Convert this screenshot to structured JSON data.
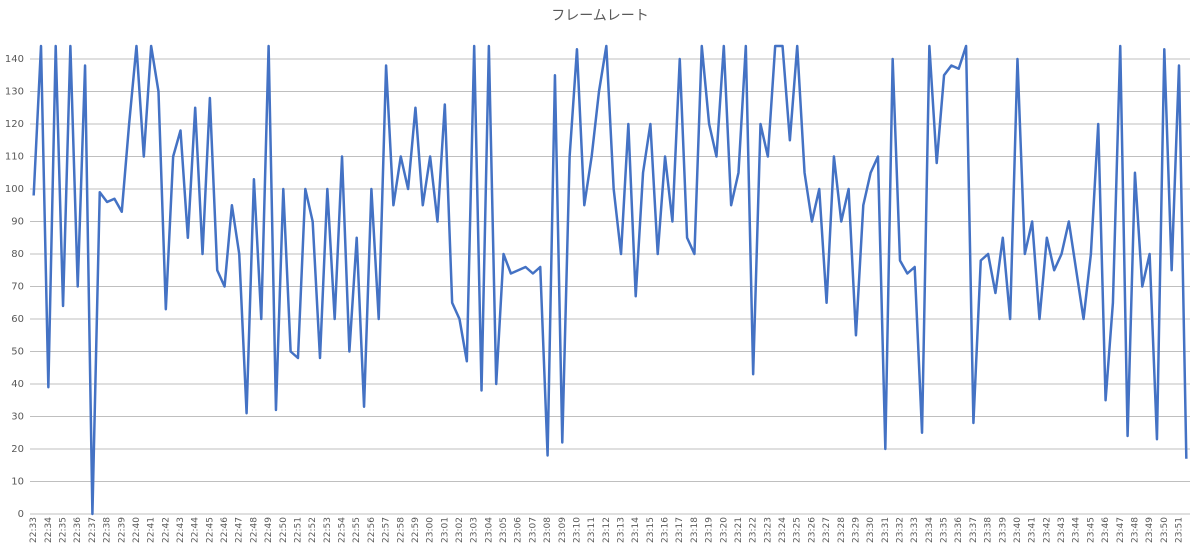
{
  "chart_data": {
    "type": "line",
    "title": "フレームレート",
    "categories": [
      "22:33",
      null,
      "22:34",
      null,
      "22:35",
      null,
      "22:36",
      null,
      "22:37",
      null,
      "22:38",
      null,
      "22:39",
      null,
      "22:40",
      null,
      "22:41",
      null,
      "22:42",
      null,
      "22:43",
      null,
      "22:44",
      null,
      "22:45",
      null,
      "22:46",
      null,
      "22:47",
      null,
      "22:48",
      null,
      "22:49",
      null,
      "22:50",
      null,
      "22:51",
      null,
      "22:52",
      null,
      "22:53",
      null,
      "22:54",
      null,
      "22:55",
      null,
      "22:56",
      null,
      "22:57",
      null,
      "22:58",
      null,
      "22:59",
      null,
      "23:00",
      null,
      "23:01",
      null,
      "23:02",
      null,
      "23:03",
      null,
      "23:04",
      null,
      "23:05",
      null,
      "23:06",
      null,
      "23:07",
      null,
      "23:08",
      null,
      "23:09",
      null,
      "23:10",
      null,
      "23:11",
      null,
      "23:12",
      null,
      "23:13",
      null,
      "23:14",
      null,
      "23:15",
      null,
      "23:16",
      null,
      "23:17",
      null,
      "23:18",
      null,
      "23:19",
      null,
      "23:20",
      null,
      "23:21",
      null,
      "23:22",
      null,
      "23:23",
      null,
      "23:24",
      null,
      "23:25",
      null,
      "23:26",
      null,
      "23:27",
      null,
      "23:28",
      null,
      "23:29",
      null,
      "23:30",
      null,
      "23:31",
      null,
      "23:32",
      null,
      "23:33",
      null,
      "23:34",
      null,
      "23:35",
      null,
      "23:36",
      null,
      "23:37",
      null,
      "23:38",
      null,
      "23:39",
      null,
      "23:40",
      null,
      "23:41",
      null,
      "23:42",
      null,
      "23:43",
      null,
      "23:44",
      null,
      "23:45",
      null,
      "23:46",
      null,
      "23:47",
      null,
      "23:48",
      null,
      "23:49",
      null,
      "23:50",
      null,
      "23:51",
      null
    ],
    "values": [
      98,
      144,
      39,
      144,
      64,
      144,
      70,
      138,
      0,
      99,
      96,
      97,
      93,
      120,
      144,
      110,
      144,
      130,
      63,
      110,
      118,
      85,
      125,
      80,
      128,
      75,
      70,
      95,
      80,
      31,
      103,
      60,
      144,
      32,
      100,
      50,
      48,
      100,
      90,
      48,
      100,
      60,
      110,
      50,
      85,
      33,
      100,
      60,
      138,
      95,
      110,
      100,
      125,
      95,
      110,
      90,
      126,
      65,
      60,
      47,
      144,
      38,
      144,
      40,
      80,
      74,
      75,
      76,
      74,
      76,
      18,
      135,
      22,
      110,
      143,
      95,
      110,
      130,
      144,
      100,
      80,
      120,
      67,
      105,
      120,
      80,
      110,
      90,
      140,
      85,
      80,
      144,
      120,
      110,
      144,
      95,
      105,
      144,
      43,
      120,
      110,
      144,
      144,
      115,
      144,
      105,
      90,
      100,
      65,
      110,
      90,
      100,
      55,
      95,
      105,
      110,
      20,
      140,
      78,
      74,
      76,
      25,
      144,
      108,
      135,
      138,
      137,
      144,
      28,
      78,
      80,
      68,
      85,
      60,
      140,
      80,
      90,
      60,
      85,
      75,
      80,
      90,
      75,
      60,
      80,
      120,
      35,
      65,
      144,
      24,
      105,
      70,
      80,
      23,
      143,
      75,
      138,
      17
    ],
    "color": "#4472c4",
    "ylim": [
      0,
      144
    ],
    "yticks": [
      0,
      10,
      20,
      30,
      40,
      50,
      60,
      70,
      80,
      90,
      100,
      110,
      120,
      130,
      140
    ],
    "grid": true
  }
}
